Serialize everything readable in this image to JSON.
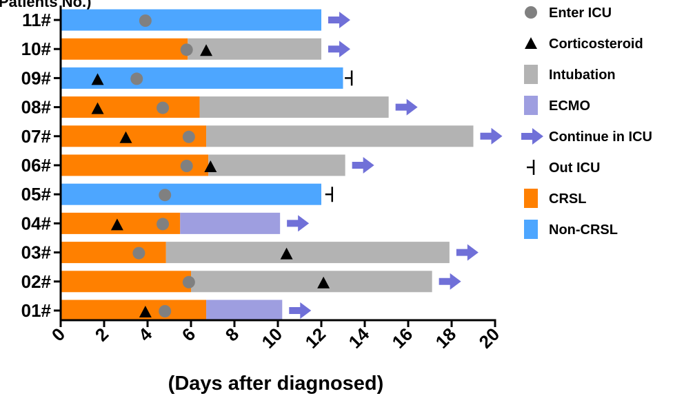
{
  "chart_data": {
    "type": "bar",
    "orientation": "horizontal-timeline",
    "ylabel_partial": "Patients No.)",
    "xlabel": "(Days after diagnosed)",
    "xlim": [
      0,
      20
    ],
    "xticks": [
      "0",
      "2",
      "4",
      "6",
      "8",
      "10",
      "12",
      "14",
      "16",
      "18",
      "20"
    ],
    "patients": [
      {
        "id": "11#",
        "segments": [
          {
            "type": "noncrsl",
            "from": 0,
            "to": 12.0
          }
        ],
        "enter_icu": 3.9,
        "end": "continue",
        "end_at": 12.0
      },
      {
        "id": "10#",
        "segments": [
          {
            "type": "crsl",
            "from": 0,
            "to": 5.85
          },
          {
            "type": "intubation",
            "from": 5.85,
            "to": 12.0
          }
        ],
        "enter_icu": 5.8,
        "corticosteroid": 6.7,
        "end": "continue",
        "end_at": 12.0
      },
      {
        "id": "09#",
        "segments": [
          {
            "type": "noncrsl",
            "from": 0,
            "to": 13.0
          }
        ],
        "enter_icu": 3.5,
        "corticosteroid": 1.7,
        "end": "out",
        "end_at": 13.4
      },
      {
        "id": "08#",
        "segments": [
          {
            "type": "crsl",
            "from": 0,
            "to": 6.4
          },
          {
            "type": "intubation",
            "from": 6.4,
            "to": 15.1
          }
        ],
        "enter_icu": 4.7,
        "corticosteroid": 1.7,
        "end": "continue",
        "end_at": 15.1
      },
      {
        "id": "07#",
        "segments": [
          {
            "type": "crsl",
            "from": 0,
            "to": 6.7
          },
          {
            "type": "intubation",
            "from": 6.7,
            "to": 19.0
          }
        ],
        "enter_icu": 5.9,
        "corticosteroid": 3.0,
        "end": "continue",
        "end_at": 19.0
      },
      {
        "id": "06#",
        "segments": [
          {
            "type": "crsl",
            "from": 0,
            "to": 6.8
          },
          {
            "type": "intubation",
            "from": 6.8,
            "to": 13.1
          }
        ],
        "enter_icu": 5.8,
        "corticosteroid": 6.9,
        "end": "continue",
        "end_at": 13.1
      },
      {
        "id": "05#",
        "segments": [
          {
            "type": "noncrsl",
            "from": 0,
            "to": 12.0
          }
        ],
        "enter_icu": 4.8,
        "end": "out",
        "end_at": 12.5
      },
      {
        "id": "04#",
        "segments": [
          {
            "type": "crsl",
            "from": 0,
            "to": 5.5
          },
          {
            "type": "ecmo",
            "from": 5.5,
            "to": 10.1
          }
        ],
        "enter_icu": 4.7,
        "corticosteroid": 2.6,
        "end": "continue",
        "end_at": 10.1
      },
      {
        "id": "03#",
        "segments": [
          {
            "type": "crsl",
            "from": 0,
            "to": 4.85
          },
          {
            "type": "intubation",
            "from": 4.85,
            "to": 17.9
          }
        ],
        "enter_icu": 3.6,
        "corticosteroid": 10.4,
        "end": "continue",
        "end_at": 17.9
      },
      {
        "id": "02#",
        "segments": [
          {
            "type": "crsl",
            "from": 0,
            "to": 6.0
          },
          {
            "type": "intubation",
            "from": 6.0,
            "to": 17.1
          }
        ],
        "enter_icu": 5.9,
        "corticosteroid": 12.1,
        "end": "continue",
        "end_at": 17.1
      },
      {
        "id": "01#",
        "segments": [
          {
            "type": "crsl",
            "from": 0,
            "to": 6.7
          },
          {
            "type": "ecmo",
            "from": 6.7,
            "to": 10.2
          }
        ],
        "enter_icu": 4.8,
        "corticosteroid": 3.9,
        "end": "continue",
        "end_at": 10.2
      }
    ],
    "legend": [
      {
        "key": "enter",
        "label": "Enter ICU"
      },
      {
        "key": "cortico",
        "label": "Corticosteroid"
      },
      {
        "key": "intubation",
        "label": "Intubation"
      },
      {
        "key": "ecmo",
        "label": "ECMO"
      },
      {
        "key": "continue",
        "label": "Continue in ICU"
      },
      {
        "key": "out",
        "label": "Out ICU"
      },
      {
        "key": "crsl",
        "label": "CRSL"
      },
      {
        "key": "noncrsl",
        "label": "Non-CRSL"
      }
    ],
    "legend_position": "right",
    "colors": {
      "crsl": "#ff8000",
      "noncrsl": "#4da6ff",
      "intubation": "#b3b3b3",
      "ecmo": "#9e9ee0",
      "arrow": "#7070d8",
      "enter": "#808080",
      "marker": "#000000"
    }
  }
}
